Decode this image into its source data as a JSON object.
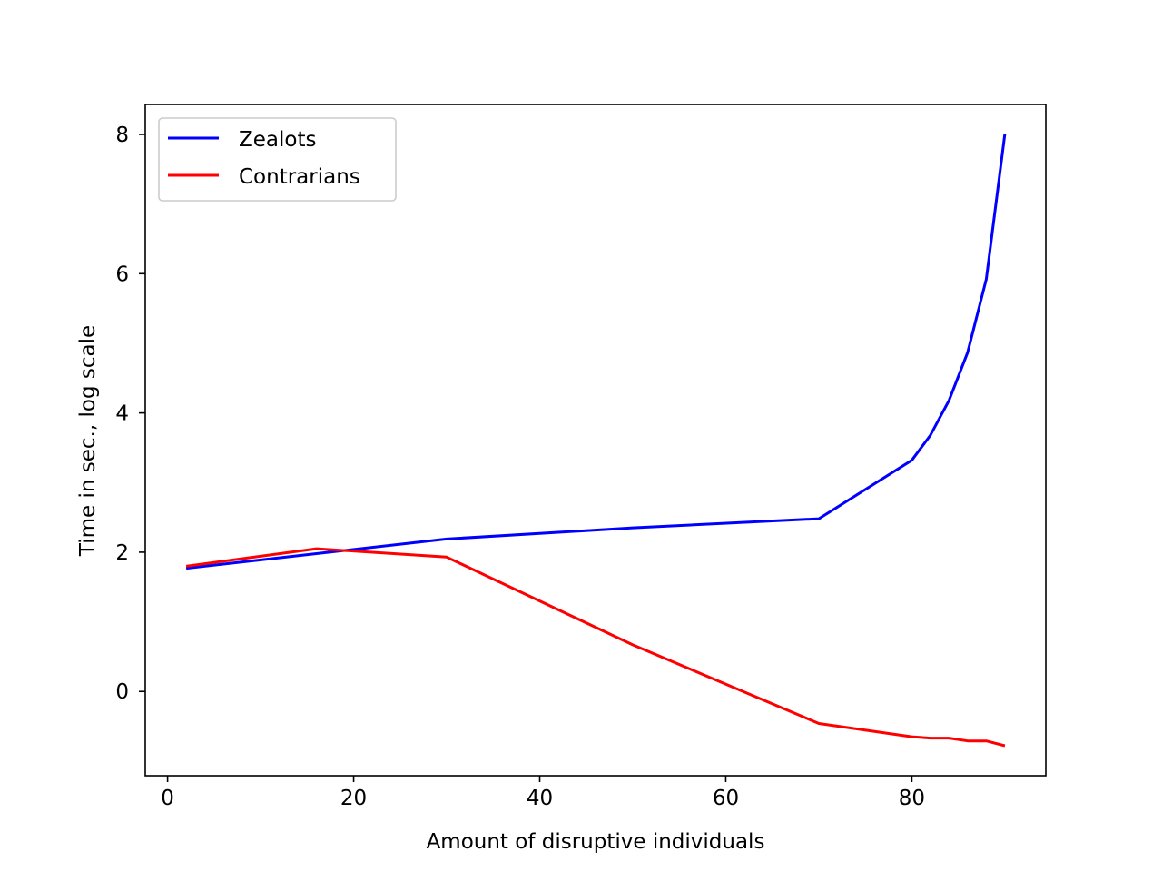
{
  "chart_data": {
    "type": "line",
    "xlabel": "Amount of disruptive individuals",
    "ylabel": "Time in sec., log scale",
    "xlim": [
      -2.4,
      94.4
    ],
    "ylim": [
      -1.21,
      8.43
    ],
    "xticks": [
      0,
      20,
      40,
      60,
      80
    ],
    "yticks": [
      0,
      2,
      4,
      6,
      8
    ],
    "grid": false,
    "legend_position": "upper left",
    "series": [
      {
        "name": "Zealots",
        "color": "#0000ff",
        "x": [
          2,
          16,
          30,
          50,
          70,
          80,
          82,
          84,
          86,
          88,
          90
        ],
        "y": [
          1.77,
          1.98,
          2.19,
          2.35,
          2.48,
          3.32,
          3.68,
          4.18,
          4.87,
          5.92,
          8.01
        ]
      },
      {
        "name": "Contrarians",
        "color": "#ff0000",
        "x": [
          2,
          16,
          30,
          50,
          70,
          80,
          82,
          84,
          86,
          88,
          90
        ],
        "y": [
          1.8,
          2.05,
          1.93,
          0.67,
          -0.46,
          -0.65,
          -0.67,
          -0.67,
          -0.71,
          -0.71,
          -0.78
        ]
      }
    ]
  }
}
